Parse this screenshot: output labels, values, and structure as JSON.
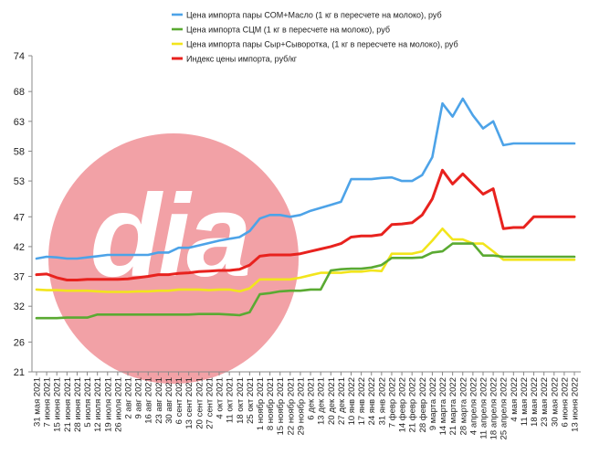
{
  "chart_data": {
    "type": "line",
    "title": "",
    "xlabel": "",
    "ylabel": "",
    "ylim": [
      21,
      74
    ],
    "y_ticks": [
      21,
      26,
      32,
      37,
      42,
      47,
      53,
      58,
      63,
      68,
      74
    ],
    "grid": false,
    "legend_position": "top-right",
    "watermark": "dia",
    "x_tick_labels": [
      "31 мая 2021",
      "7 июня 2021",
      "15 июня 2021",
      "21 июня 2021",
      "28 июня 2021",
      "5 июля 2021",
      "12 июля 2021",
      "19 июля 2021",
      "26 июля 2021",
      "2 авг 2021",
      "9 авг 2021",
      "16 авг 2021",
      "23 авг 2021",
      "30 авг 2021",
      "6 сент 2021",
      "13 сент 2021",
      "20 сент 2021",
      "27 сент 2021",
      "4 окт 2021",
      "11 окт 2021",
      "18 окт 2021",
      "25 окт 2021",
      "1 ноябр 2021",
      "8 ноябр 2021",
      "15 ноябр 2021",
      "22 ноябр 2021",
      "29 ноябр 2021",
      "6 дек 2021",
      "13 дек 2021",
      "20 дек 2021",
      "27 дек 2021",
      "10 янв 2022",
      "17 янв 2022",
      "24 янв 2022",
      "31 янв 2022",
      "7 февр 2022",
      "14 февр 2022",
      "21 февр 2022",
      "28 февр 2022",
      "9 марта 2022",
      "14 марта 2022",
      "21 марта 2022",
      "28 марта 2022",
      "4 апреля 2022",
      "11 апреля 2022",
      "18 апреля 2022",
      "25 апреля 2022",
      "4 мая 2022",
      "11 мая 2022",
      "18 мая 2022",
      "23 мая 2022",
      "30 мая 2022",
      "6 июня 2022",
      "13 июня 2022"
    ],
    "series": [
      {
        "name": "Цена  импорта пары СОМ+Масло  (1 кг в пересчете на молоко),  руб",
        "color": "#4da3e8",
        "values": [
          40.0,
          40.3,
          40.2,
          40.0,
          40.0,
          40.2,
          40.4,
          40.6,
          40.6,
          40.6,
          40.6,
          40.6,
          41.0,
          41.0,
          41.8,
          41.8,
          42.2,
          42.6,
          43.0,
          43.3,
          43.6,
          44.6,
          46.7,
          47.3,
          47.3,
          47.0,
          47.3,
          48.0,
          48.5,
          49.0,
          49.5,
          53.3,
          53.3,
          53.3,
          53.5,
          53.6,
          53.0,
          53.0,
          54.0,
          57.0,
          66.0,
          63.8,
          66.8,
          64.0,
          61.8,
          63.0,
          59.0,
          59.3,
          59.3,
          59.3,
          59.3,
          59.3,
          59.3,
          59.3
        ]
      },
      {
        "name": "Цена  импорта СЦМ  (1 кг в пересчете на молоко), руб",
        "color": "#5aaa32",
        "values": [
          30.0,
          30.0,
          30.0,
          30.1,
          30.1,
          30.1,
          30.6,
          30.6,
          30.6,
          30.6,
          30.6,
          30.6,
          30.6,
          30.6,
          30.6,
          30.6,
          30.7,
          30.7,
          30.7,
          30.6,
          30.5,
          31.0,
          34.0,
          34.2,
          34.5,
          34.6,
          34.6,
          34.8,
          34.8,
          38.0,
          38.2,
          38.3,
          38.3,
          38.5,
          38.9,
          40.1,
          40.1,
          40.1,
          40.2,
          41.0,
          41.2,
          42.5,
          42.5,
          42.5,
          40.5,
          40.5,
          40.3,
          40.3,
          40.3,
          40.3,
          40.3,
          40.3,
          40.3,
          40.3
        ]
      },
      {
        "name": "Цена  импорта пары Сыр+Сыворотка,  (1 кг в пересчете на молоко), руб",
        "color": "#f2e51c",
        "values": [
          34.8,
          34.7,
          34.7,
          34.6,
          34.6,
          34.6,
          34.5,
          34.4,
          34.4,
          34.4,
          34.5,
          34.5,
          34.6,
          34.6,
          34.8,
          34.8,
          34.8,
          34.7,
          34.8,
          34.8,
          34.5,
          35.0,
          36.5,
          36.5,
          36.5,
          36.5,
          36.8,
          37.2,
          37.6,
          37.6,
          37.6,
          37.8,
          37.8,
          38.0,
          37.9,
          40.8,
          40.8,
          40.8,
          41.2,
          43.0,
          45.0,
          43.2,
          43.2,
          42.5,
          42.5,
          41.2,
          39.8,
          39.8,
          39.8,
          39.8,
          39.8,
          39.8,
          39.8,
          39.8
        ]
      },
      {
        "name": "Индекс цены импорта, руб/кг",
        "color": "#e8221e",
        "values": [
          37.3,
          37.4,
          36.8,
          36.4,
          36.4,
          36.5,
          36.5,
          36.5,
          36.5,
          36.6,
          36.8,
          37.0,
          37.3,
          37.3,
          37.5,
          37.6,
          37.8,
          37.9,
          38.0,
          38.0,
          38.2,
          38.9,
          40.4,
          40.6,
          40.6,
          40.6,
          40.8,
          41.2,
          41.6,
          42.0,
          42.5,
          43.6,
          43.8,
          43.8,
          44.0,
          45.7,
          45.8,
          46.0,
          47.3,
          50.0,
          54.8,
          52.5,
          54.2,
          52.5,
          50.8,
          51.7,
          45.0,
          45.2,
          45.2,
          47.0,
          47.0,
          47.0,
          47.0,
          47.0
        ]
      }
    ]
  }
}
